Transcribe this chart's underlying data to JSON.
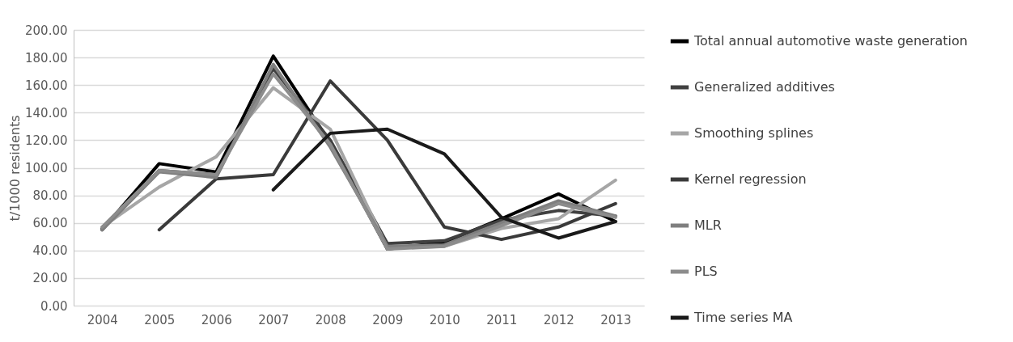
{
  "chart_data": {
    "type": "line",
    "ylabel": "t/1000 residents",
    "categories": [
      "2004",
      "2005",
      "2006",
      "2007",
      "2008",
      "2009",
      "2010",
      "2011",
      "2012",
      "2013"
    ],
    "ylim": [
      0,
      200
    ],
    "yticks": [
      {
        "value": 0,
        "label": "0.00"
      },
      {
        "value": 20,
        "label": "20.00"
      },
      {
        "value": 40,
        "label": "40.00"
      },
      {
        "value": 60,
        "label": "60.00"
      },
      {
        "value": 80,
        "label": "80.00"
      },
      {
        "value": 100,
        "label": "100.00"
      },
      {
        "value": 120,
        "label": "120.00"
      },
      {
        "value": 140,
        "label": "140.00"
      },
      {
        "value": 160,
        "label": "160.00"
      },
      {
        "value": 180,
        "label": "180.00"
      },
      {
        "value": 200,
        "label": "200.00"
      }
    ],
    "grid": "y",
    "legend": "right",
    "marker": "none",
    "line_style": "solid",
    "series": [
      {
        "name": "Total annual automotive waste generation",
        "color": "#000000",
        "values": [
          55,
          103,
          97,
          181,
          118,
          41,
          46,
          63,
          81,
          61
        ]
      },
      {
        "name": "Generalized additives",
        "color": "#404040",
        "values": [
          56,
          98,
          95,
          172,
          120,
          45,
          47,
          62,
          69,
          65
        ]
      },
      {
        "name": "Smoothing splines",
        "color": "#a6a6a6",
        "values": [
          57,
          86,
          108,
          158,
          128,
          42,
          43,
          56,
          63,
          91
        ]
      },
      {
        "name": "Kernel regression",
        "color": "#3a3a3a",
        "values": [
          null,
          55,
          92,
          95,
          163,
          120,
          57,
          48,
          57,
          74
        ]
      },
      {
        "name": "MLR",
        "color": "#7f7f7f",
        "values": [
          55,
          97,
          93,
          175,
          115,
          43,
          44,
          60,
          76,
          65
        ]
      },
      {
        "name": "PLS",
        "color": "#8c8c8c",
        "values": [
          57,
          98,
          95,
          168,
          117,
          41,
          43,
          58,
          74,
          64
        ]
      },
      {
        "name": "Time series MA",
        "color": "#1a1a1a",
        "values": [
          null,
          null,
          null,
          84,
          125,
          128,
          110,
          64,
          49,
          61
        ]
      }
    ]
  }
}
